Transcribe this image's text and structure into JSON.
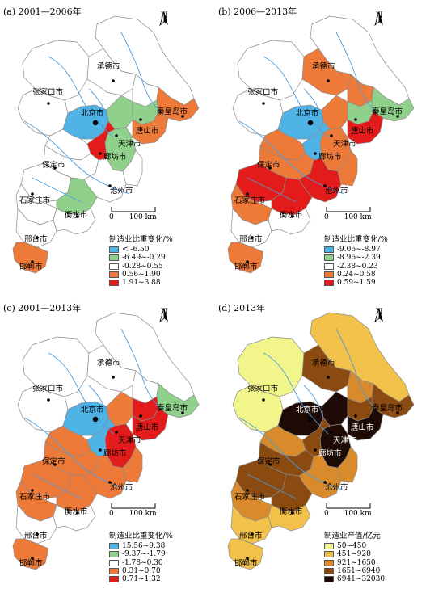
{
  "panels": [
    {
      "title": "(a) 2001—2006年",
      "legend_title": "制造业比重变化/%",
      "classes": [
        {
          "label": "< -6.50",
          "color": "#4fb3e6"
        },
        {
          "label": "-6.49~-0.29",
          "color": "#8fd18a"
        },
        {
          "label": "-0.28~0.55",
          "color": "#ffffff"
        },
        {
          "label": "0.56~1.90",
          "color": "#ee7a3a"
        },
        {
          "label": "1.91~3.88",
          "color": "#e31b1b"
        }
      ]
    },
    {
      "title": "(b) 2006—2013年",
      "legend_title": "制造业比重变化/%",
      "classes": [
        {
          "label": "-9.06~-8.97",
          "color": "#4fb3e6"
        },
        {
          "label": "-8.96~-2.39",
          "color": "#8fd18a"
        },
        {
          "label": "-2.38~0.23",
          "color": "#ffffff"
        },
        {
          "label": "0.24~0.58",
          "color": "#ee7a3a"
        },
        {
          "label": "0.59~1.59",
          "color": "#e31b1b"
        }
      ]
    },
    {
      "title": "(c) 2001—2013年",
      "legend_title": "制造业比重变化/%",
      "classes": [
        {
          "label": "15.56~9.38",
          "color": "#4fb3e6"
        },
        {
          "label": "-9.37~-1.79",
          "color": "#8fd18a"
        },
        {
          "label": "-1.78~0.30",
          "color": "#ffffff"
        },
        {
          "label": "0.31~0.70",
          "color": "#ee7a3a"
        },
        {
          "label": "0.71~1.32",
          "color": "#e31b1b"
        }
      ]
    },
    {
      "title": "(d) 2013年",
      "legend_title": "制造业产值/亿元",
      "classes": [
        {
          "label": "50~450",
          "color": "#f2f58a"
        },
        {
          "label": "451~920",
          "color": "#f2c14a"
        },
        {
          "label": "921~1650",
          "color": "#d98a2a"
        },
        {
          "label": "1651~6940",
          "color": "#8a4a10"
        },
        {
          "label": "6941~32030",
          "color": "#1e0b05"
        }
      ]
    }
  ],
  "north_label": "N",
  "scale_zero": "0",
  "scale_label": "100 km",
  "cities": {
    "chengde": "承德市",
    "zhangjiakou": "张家口市",
    "qinhuangdao": "秦皇岛市",
    "beijing": "北京市",
    "tangshan": "唐山市",
    "tianjin": "天津市",
    "langfang": "廊坊市",
    "baoding": "保定市",
    "cangzhou": "沧州市",
    "shijiazhuang": "石家庄市",
    "hengshui": "衡水市",
    "xingtai": "邢台市",
    "handan": "邯郸市"
  },
  "colors": {
    "boundary": "#8c8c8c",
    "river": "#4a9be0",
    "outline": "#444444"
  }
}
